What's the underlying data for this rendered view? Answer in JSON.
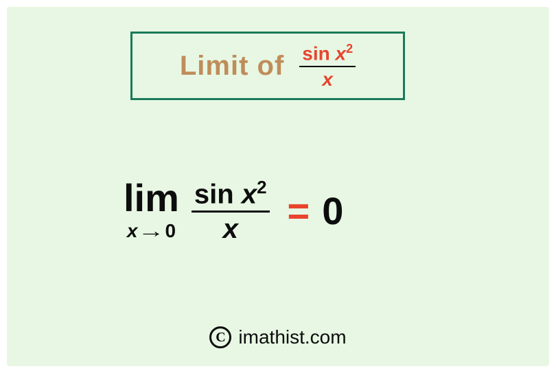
{
  "colors": {
    "background": "#e7f7e3",
    "border": "#1a7a5a",
    "title": "#bf8d5a",
    "accent": "#e8442e",
    "text": "#0d0d0d"
  },
  "title": {
    "label": "Limit  of",
    "fraction": {
      "numerator_prefix": "sin ",
      "numerator_var": "x",
      "numerator_sup": "2",
      "denominator": "x"
    }
  },
  "equation": {
    "lim_label": "lim",
    "approach_var": "x",
    "approach_arrow": "→",
    "approach_target": "0",
    "fraction": {
      "numerator_prefix": "sin ",
      "numerator_var": "x",
      "numerator_sup": "2",
      "denominator": "x"
    },
    "equals": "=",
    "result": "0"
  },
  "footer": {
    "copyright_inner": "C",
    "site": "imathist.com"
  }
}
